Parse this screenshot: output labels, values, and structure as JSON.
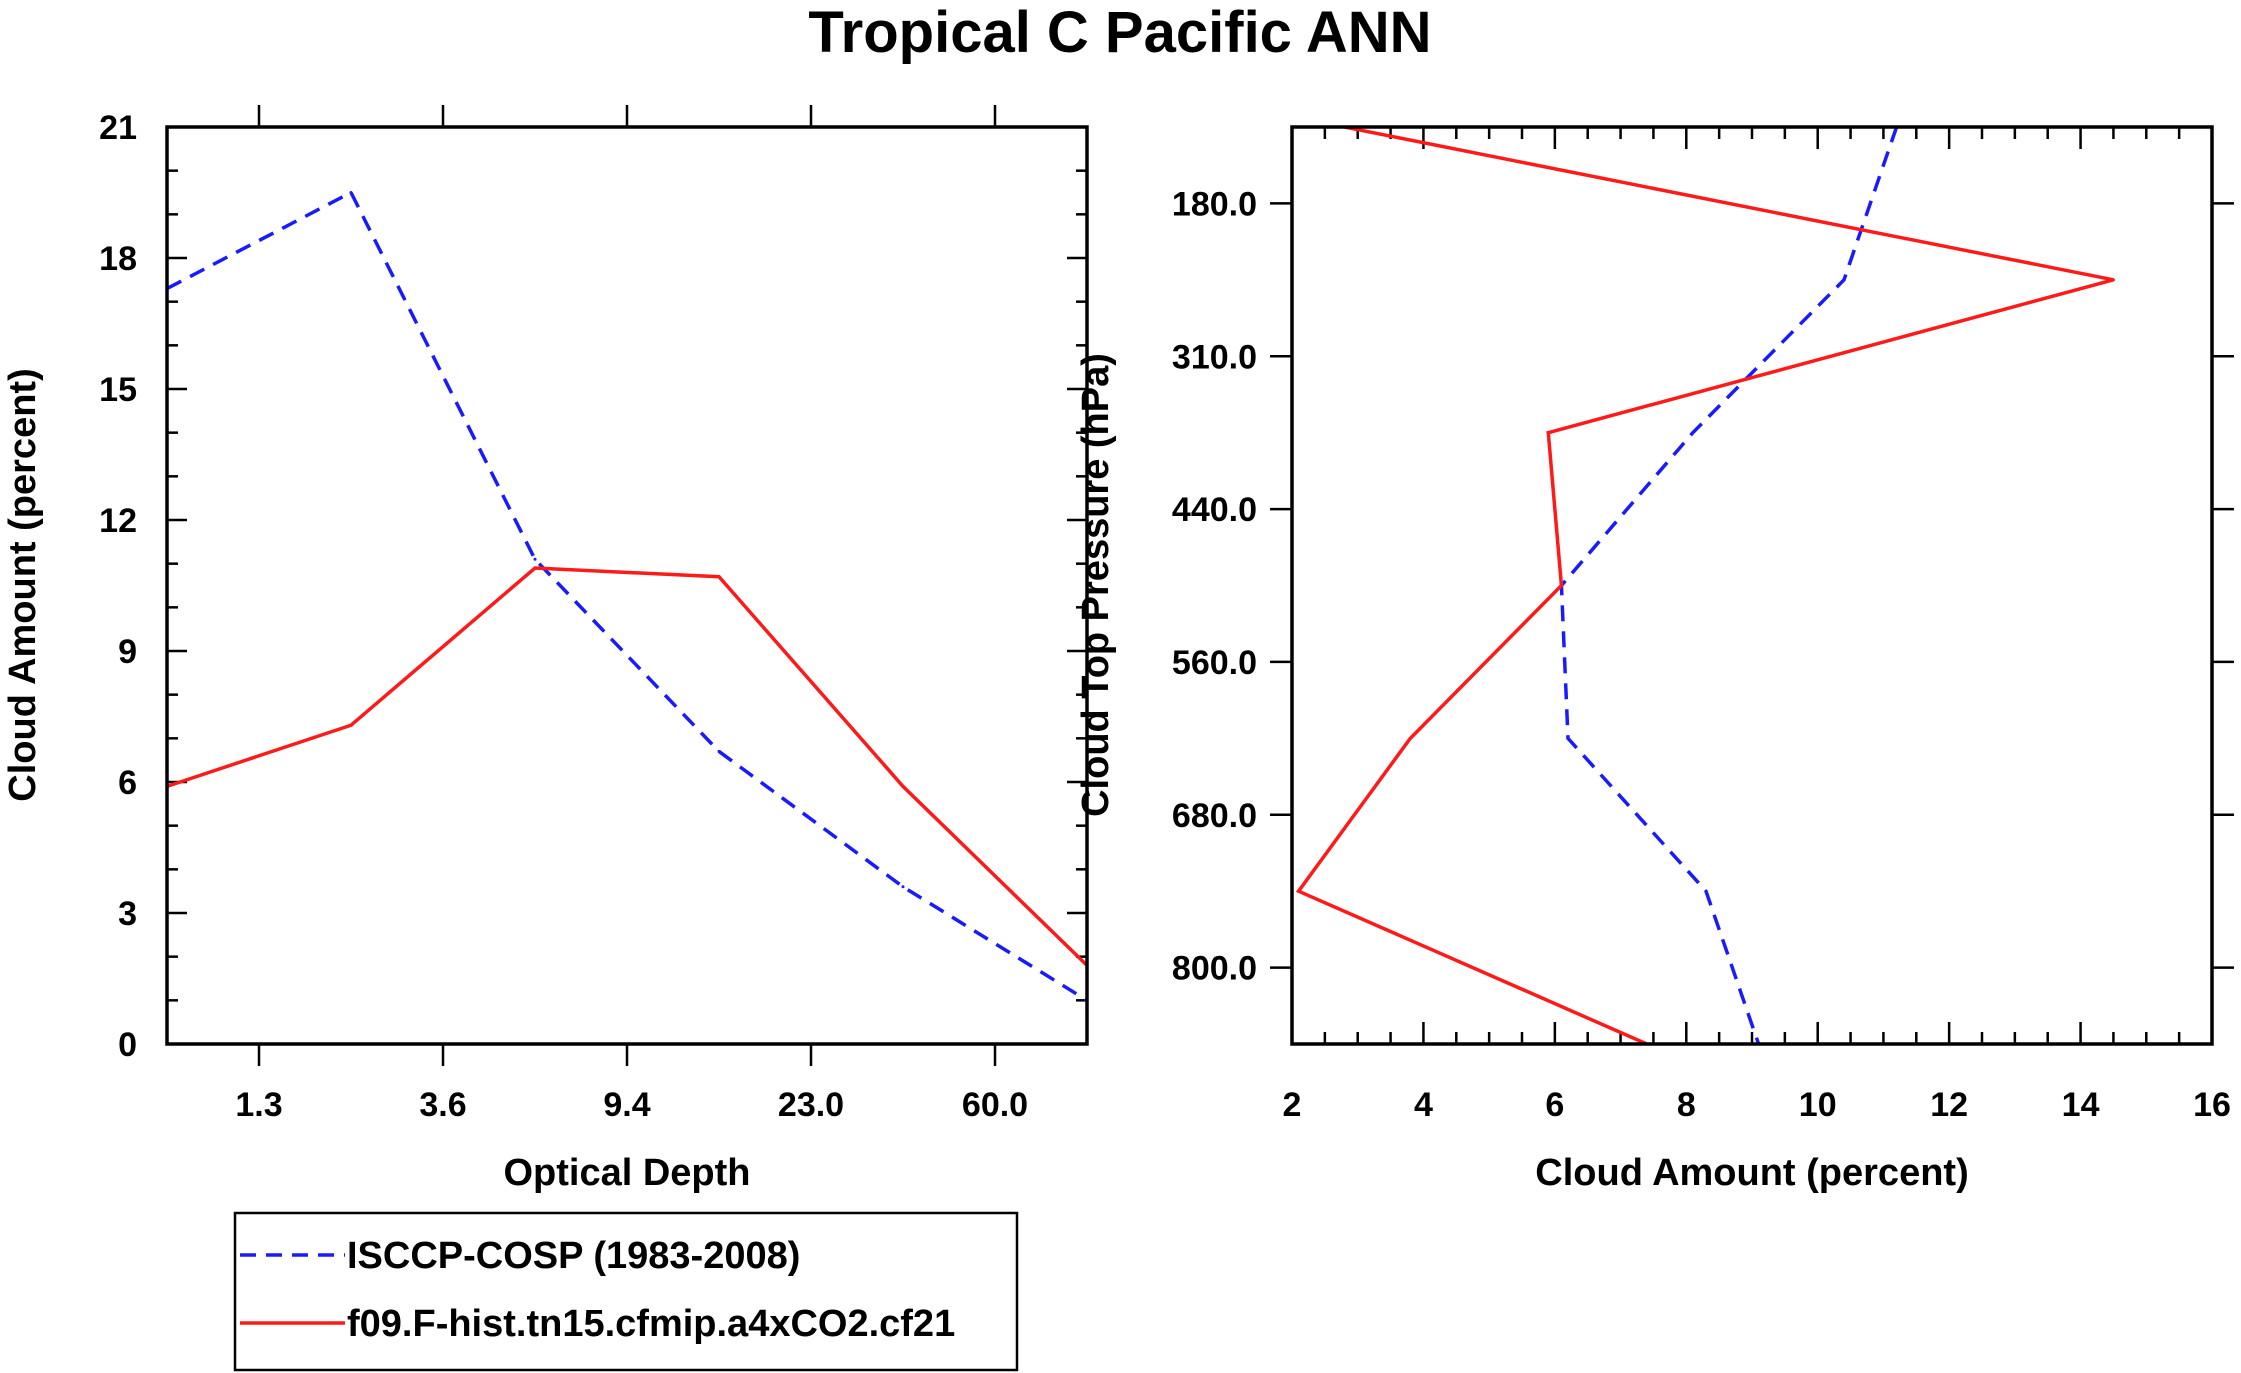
{
  "colors": {
    "obs": "#1a1aff",
    "model": "#ff1a1a",
    "frame": "#000000"
  },
  "chart_data": [
    {
      "type": "line",
      "title": "Tropical C Pacific ANN",
      "xlabel": "Optical Depth",
      "ylabel": "Cloud Amount (percent)",
      "x_tick_labels": [
        "1.3",
        "3.6",
        "9.4",
        "23.0",
        "60.0"
      ],
      "y_ticks": [
        0,
        3,
        6,
        9,
        12,
        15,
        18,
        21
      ],
      "ylim": [
        0,
        21
      ],
      "x_bins": [
        0,
        1,
        2,
        3,
        4,
        5
      ],
      "series": [
        {
          "name": "ISCCP-COSP (1983-2008)",
          "style": "dashed",
          "values": [
            17.3,
            19.5,
            11.1,
            6.7,
            3.6,
            1.0
          ]
        },
        {
          "name": "f09.F-hist.tn15.cfmip.a4xCO2.cf21",
          "style": "solid",
          "values": [
            5.9,
            7.3,
            10.9,
            10.7,
            5.9,
            1.8
          ]
        }
      ]
    },
    {
      "type": "line",
      "xlabel": "Cloud Amount (percent)",
      "ylabel": "Cloud Top Pressure (hPa)",
      "x_ticks": [
        2,
        4,
        6,
        8,
        10,
        12,
        14,
        16
      ],
      "xlim": [
        2,
        16
      ],
      "y_tick_labels": [
        "180.0",
        "310.0",
        "440.0",
        "560.0",
        "680.0",
        "800.0"
      ],
      "pressure_bins": [
        0,
        1,
        2,
        3,
        4,
        5,
        6
      ],
      "series": [
        {
          "name": "ISCCP-COSP (1983-2008)",
          "style": "dashed",
          "values": [
            11.2,
            10.4,
            8.1,
            6.1,
            6.2,
            8.3,
            9.1
          ]
        },
        {
          "name": "f09.F-hist.tn15.cfmip.a4xCO2.cf21",
          "style": "solid",
          "values": [
            2.8,
            14.5,
            5.9,
            6.1,
            3.8,
            2.1,
            7.4
          ]
        }
      ]
    }
  ],
  "legend": {
    "entries": [
      {
        "label": "ISCCP-COSP (1983-2008)",
        "style": "dashed"
      },
      {
        "label": "f09.F-hist.tn15.cfmip.a4xCO2.cf21",
        "style": "solid"
      }
    ]
  }
}
